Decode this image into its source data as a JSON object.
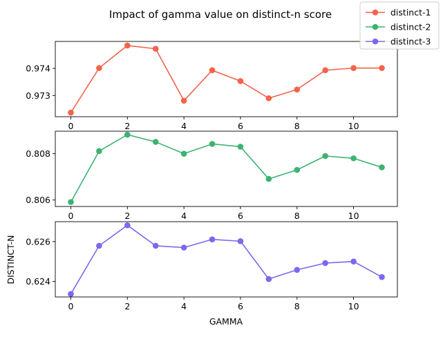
{
  "chart_data": {
    "type": "line",
    "title": "Impact of gamma value on distinct-n score",
    "xlabel": "GAMMA",
    "ylabel": "DISTINCT-N",
    "x": [
      0,
      1,
      2,
      3,
      4,
      5,
      6,
      7,
      8,
      9,
      10,
      11
    ],
    "x_ticks": [
      "0",
      "2",
      "4",
      "6",
      "8",
      "10"
    ],
    "xlim": [
      -0.55,
      11.55
    ],
    "legend": "top-right",
    "grid": false,
    "series": [
      {
        "name": "distinct-1",
        "color": "#f4634a",
        "values": [
          0.97237,
          0.97401,
          0.97484,
          0.97472,
          0.97281,
          0.97393,
          0.97353,
          0.9729,
          0.97322,
          0.97393,
          0.97401,
          0.97401
        ],
        "ylim": [
          0.97222,
          0.97499
        ],
        "y_ticks": [
          0.973,
          0.974
        ],
        "y_tick_labels": [
          "0.973",
          "0.974"
        ]
      },
      {
        "name": "distinct-2",
        "color": "#3cb371",
        "values": [
          0.80591,
          0.80811,
          0.80882,
          0.80851,
          0.808,
          0.80842,
          0.8083,
          0.80691,
          0.8073,
          0.8079,
          0.8078,
          0.80741
        ],
        "ylim": [
          0.80572,
          0.80897
        ],
        "y_ticks": [
          0.806,
          0.808
        ],
        "y_tick_labels": [
          "0.806",
          "0.808"
        ]
      },
      {
        "name": "distinct-3",
        "color": "#7b68ee",
        "values": [
          0.62337,
          0.62579,
          0.62682,
          0.62579,
          0.6257,
          0.62611,
          0.62602,
          0.62412,
          0.62458,
          0.62492,
          0.625,
          0.62422
        ],
        "ylim": [
          0.62322,
          0.627
        ],
        "y_ticks": [
          0.624,
          0.626
        ],
        "y_tick_labels": [
          "0.624",
          "0.626"
        ]
      }
    ]
  }
}
